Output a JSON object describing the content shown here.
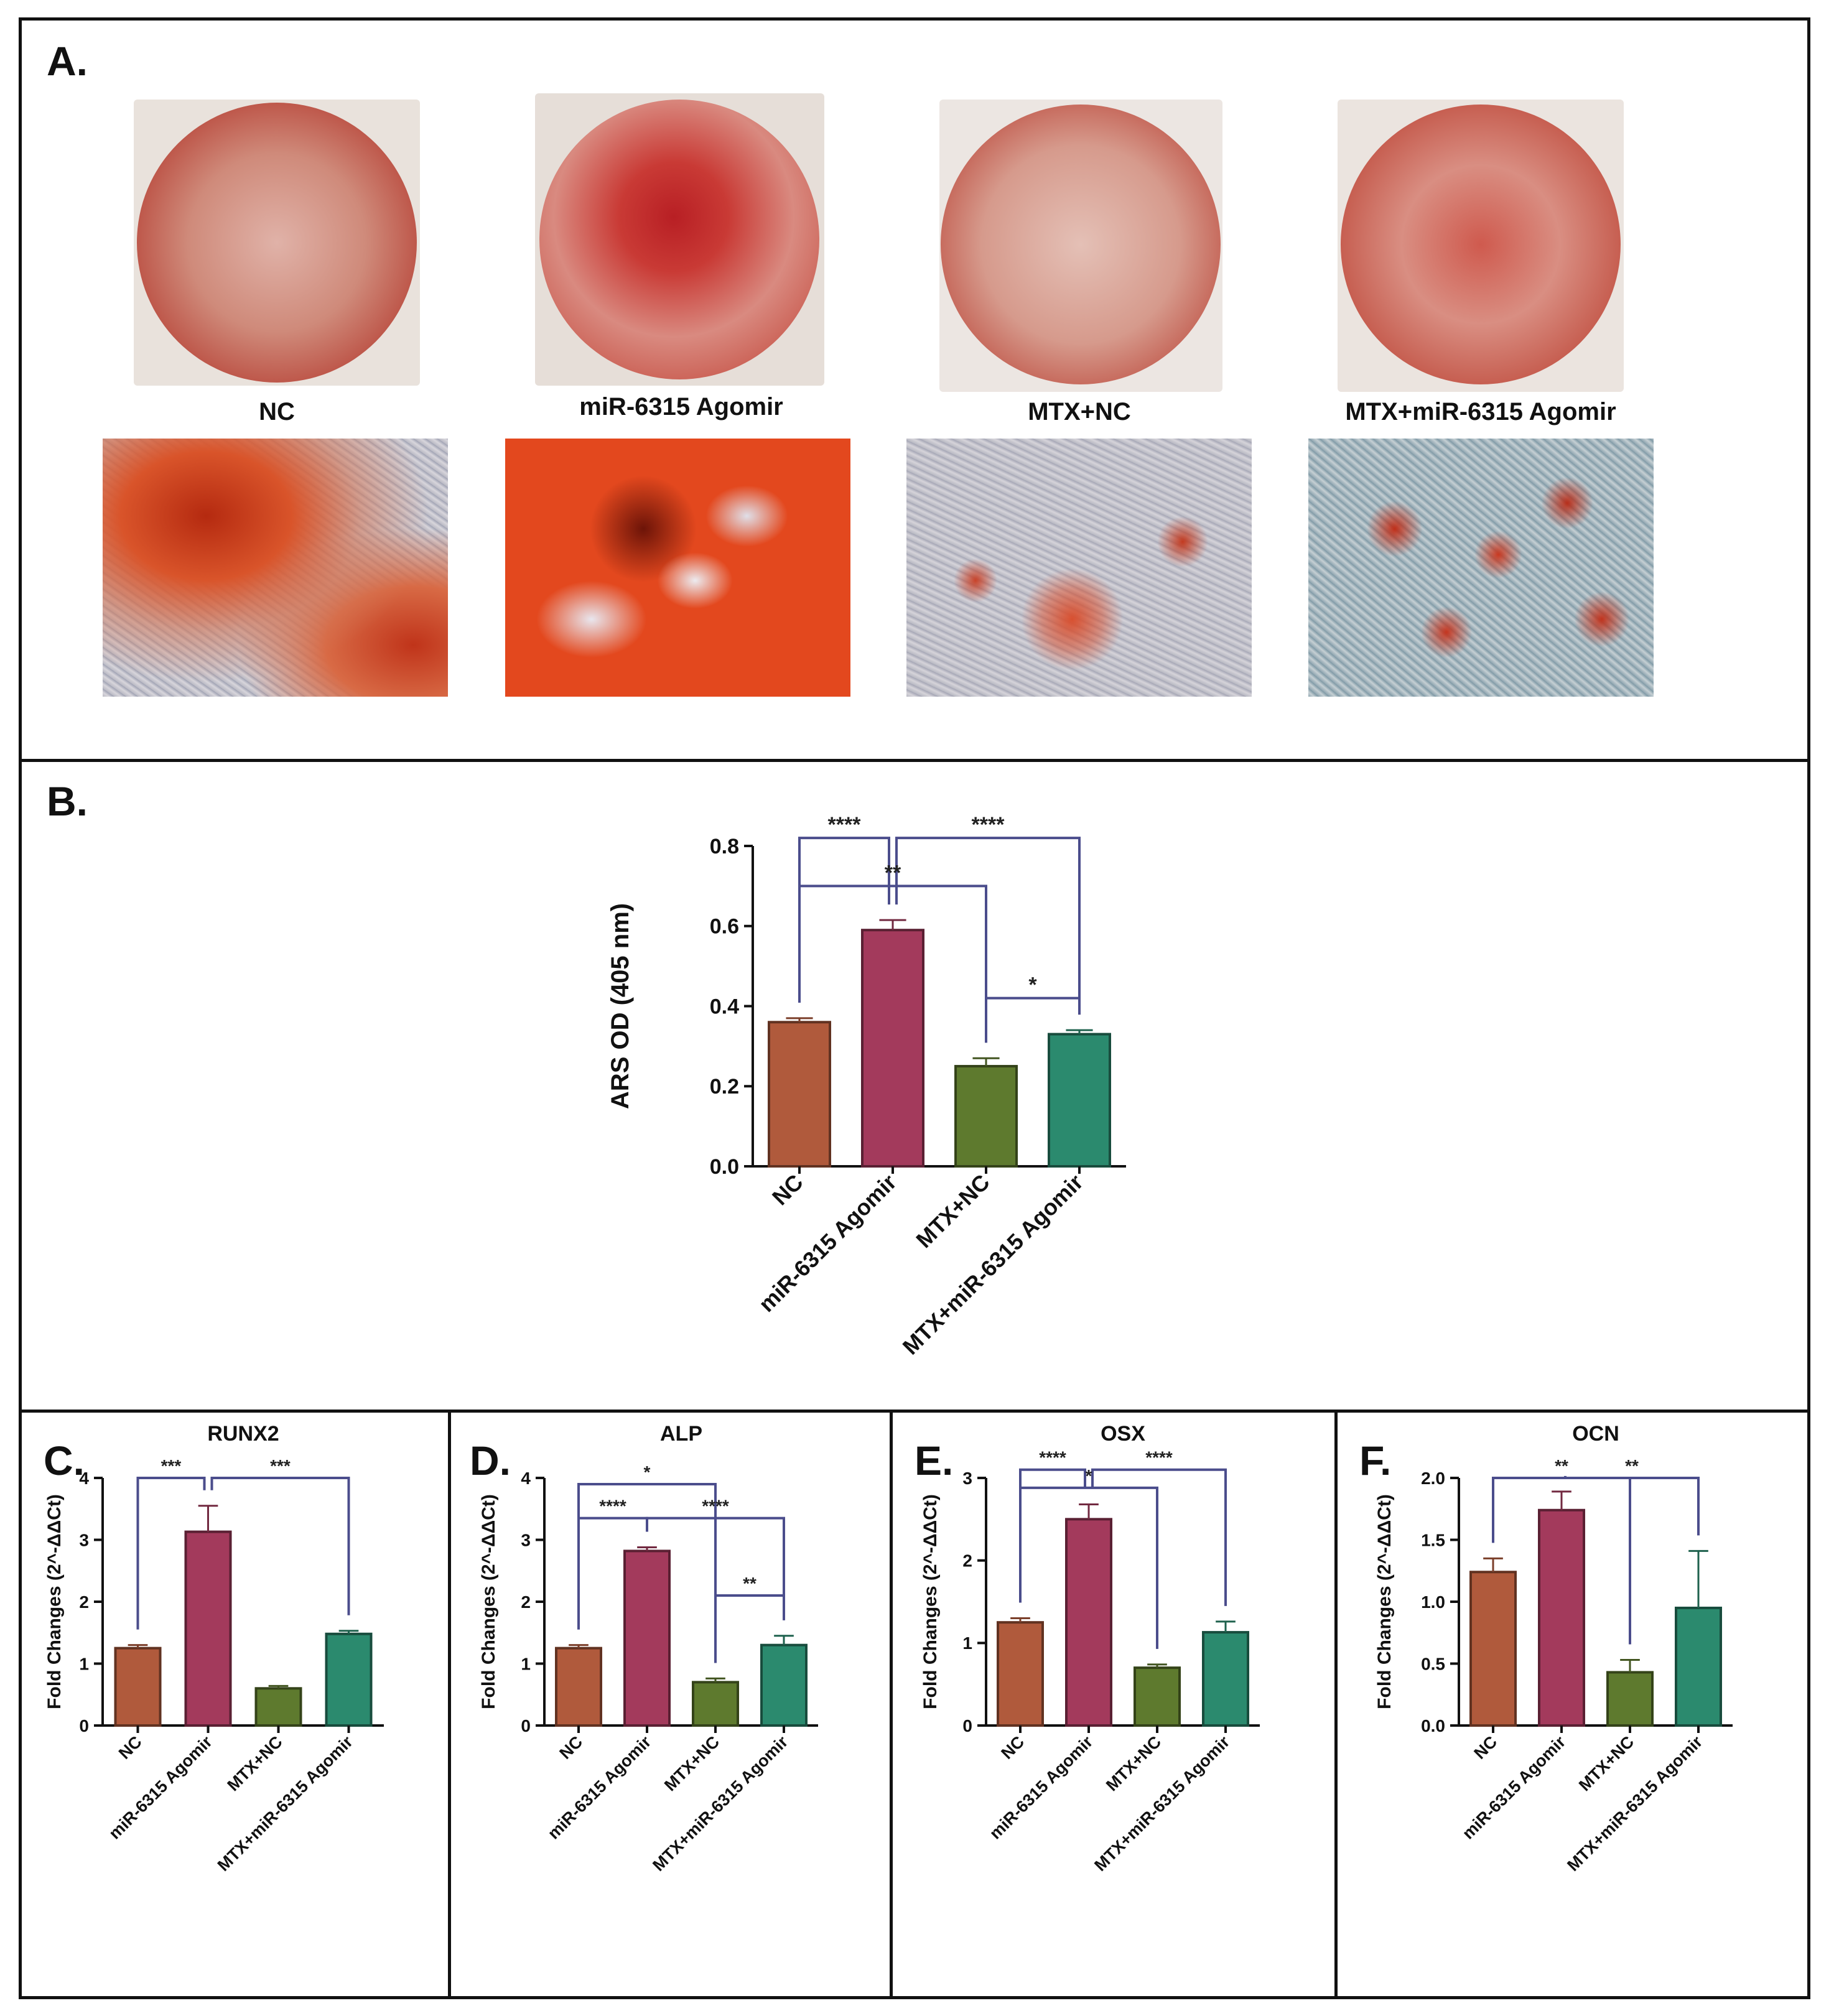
{
  "panels": {
    "A": {
      "label": "A.",
      "groups": [
        "NC",
        "miR-6315 Agomir",
        "MTX+NC",
        "MTX+miR-6315 Agomir"
      ]
    },
    "B": {
      "label": "B."
    },
    "C": {
      "label": "C."
    },
    "D": {
      "label": "D."
    },
    "E": {
      "label": "E."
    },
    "F": {
      "label": "F."
    }
  },
  "colors": {
    "NC": "#b05a3c",
    "miR-6315 Agomir": "#a33a5c",
    "MTX+NC": "#5e7a2e",
    "MTX+miR-6315 Agomir": "#2b8a6e",
    "bracket": "#4b4d8c"
  },
  "chart_data": [
    {
      "id": "B",
      "type": "bar",
      "title": "",
      "ylabel": "ARS OD (405 nm)",
      "categories": [
        "NC",
        "miR-6315 Agomir",
        "MTX+NC",
        "MTX+miR-6315 Agomir"
      ],
      "values": [
        0.36,
        0.59,
        0.25,
        0.33
      ],
      "errors": [
        0.01,
        0.025,
        0.02,
        0.01
      ],
      "ylim": [
        0,
        0.8
      ],
      "yticks": [
        "0.0",
        "0.2",
        "0.4",
        "0.6",
        "0.8"
      ],
      "ytick_values": [
        0,
        0.2,
        0.4,
        0.6,
        0.8
      ],
      "comparisons": [
        {
          "from": 0,
          "to": 1,
          "level": 0.82,
          "label": "****"
        },
        {
          "from": 1,
          "to": 3,
          "level": 0.82,
          "label": "****"
        },
        {
          "from": 0,
          "to": 2,
          "level": 0.7,
          "label": "**"
        },
        {
          "from": 2,
          "to": 3,
          "level": 0.42,
          "label": "*"
        }
      ]
    },
    {
      "id": "C",
      "type": "bar",
      "title": "RUNX2",
      "ylabel": "Fold Changes (2^-ΔΔCt)",
      "categories": [
        "NC",
        "miR-6315 Agomir",
        "MTX+NC",
        "MTX+miR-6315 Agomir"
      ],
      "values": [
        1.25,
        3.13,
        0.6,
        1.48
      ],
      "errors": [
        0.05,
        0.42,
        0.04,
        0.05
      ],
      "ylim": [
        0,
        4
      ],
      "yticks": [
        "0",
        "1",
        "2",
        "3",
        "4"
      ],
      "ytick_values": [
        0,
        1,
        2,
        3,
        4
      ],
      "comparisons": [
        {
          "from": 0,
          "to": 1,
          "level": 4.0,
          "label": "***"
        },
        {
          "from": 1,
          "to": 3,
          "level": 4.0,
          "label": "***"
        }
      ]
    },
    {
      "id": "D",
      "type": "bar",
      "title": "ALP",
      "ylabel": "Fold Changes (2^-ΔΔCt)",
      "categories": [
        "NC",
        "miR-6315 Agomir",
        "MTX+NC",
        "MTX+miR-6315 Agomir"
      ],
      "values": [
        1.25,
        2.82,
        0.7,
        1.3
      ],
      "errors": [
        0.05,
        0.06,
        0.06,
        0.15
      ],
      "ylim": [
        0,
        4
      ],
      "yticks": [
        "0",
        "1",
        "2",
        "3",
        "4"
      ],
      "ytick_values": [
        0,
        1,
        2,
        3,
        4
      ],
      "comparisons": [
        {
          "from": 0,
          "to": 2,
          "level": 3.9,
          "label": "*"
        },
        {
          "from": 0,
          "to": 1,
          "level": 3.35,
          "label": "****"
        },
        {
          "from": 1,
          "to": 3,
          "level": 3.35,
          "label": "****"
        },
        {
          "from": 2,
          "to": 3,
          "level": 2.1,
          "label": "**"
        }
      ]
    },
    {
      "id": "E",
      "type": "bar",
      "title": "OSX",
      "ylabel": "Fold Changes (2^-ΔΔCt)",
      "categories": [
        "NC",
        "miR-6315 Agomir",
        "MTX+NC",
        "MTX+miR-6315 Agomir"
      ],
      "values": [
        1.25,
        2.5,
        0.7,
        1.13
      ],
      "errors": [
        0.05,
        0.18,
        0.04,
        0.13
      ],
      "ylim": [
        0,
        3
      ],
      "yticks": [
        "0",
        "1",
        "2",
        "3"
      ],
      "ytick_values": [
        0,
        1,
        2,
        3
      ],
      "comparisons": [
        {
          "from": 0,
          "to": 1,
          "level": 3.1,
          "label": "****"
        },
        {
          "from": 1,
          "to": 3,
          "level": 3.1,
          "label": "****"
        },
        {
          "from": 0,
          "to": 2,
          "level": 2.88,
          "label": "*"
        }
      ]
    },
    {
      "id": "F",
      "type": "bar",
      "title": "OCN",
      "ylabel": "Fold Changes (2^-ΔΔCt)",
      "categories": [
        "NC",
        "miR-6315 Agomir",
        "MTX+NC",
        "MTX+miR-6315 Agomir"
      ],
      "values": [
        1.24,
        1.74,
        0.43,
        0.95
      ],
      "errors": [
        0.11,
        0.15,
        0.1,
        0.46
      ],
      "ylim": [
        0,
        2.0
      ],
      "yticks": [
        "0.0",
        "0.5",
        "1.0",
        "1.5",
        "2.0"
      ],
      "ytick_values": [
        0,
        0.5,
        1.0,
        1.5,
        2.0
      ],
      "comparisons": [
        {
          "from": 0,
          "to": 2,
          "level": 2.0,
          "label": "**"
        },
        {
          "from": 1,
          "to": 3,
          "level": 2.0,
          "label": "**"
        }
      ]
    }
  ]
}
